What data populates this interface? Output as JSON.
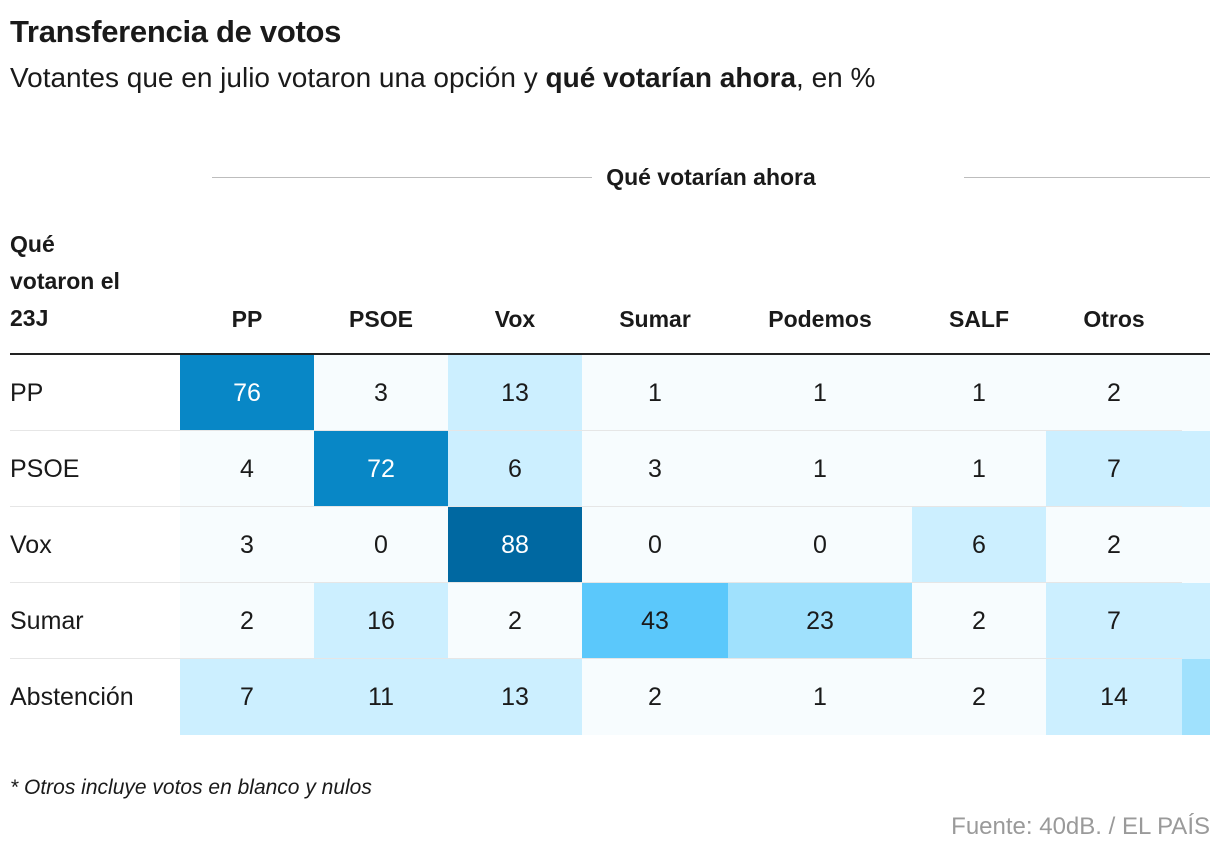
{
  "title": "Transferencia de votos",
  "subtitle": {
    "prefix": "Votantes que en julio votaron una opción y ",
    "bold": "qué votarían ahora",
    "suffix": ", en %"
  },
  "column_group_label": "Qué votarían ahora",
  "row_header": [
    "Qué",
    "votaron el",
    "23J"
  ],
  "note": "* Otros incluye votos en blanco y nulos",
  "source": "Fuente: 40dB. / EL PAÍS",
  "chart_data": {
    "type": "heatmap",
    "title": "Transferencia de votos",
    "xlabel": "Qué votarían ahora",
    "ylabel": "Qué votaron el 23J",
    "unit": "%",
    "columns": [
      "PP",
      "PSOE",
      "Vox",
      "Sumar",
      "Podemos",
      "SALF",
      "Otros"
    ],
    "rows": [
      "PP",
      "PSOE",
      "Vox",
      "Sumar",
      "Abstención"
    ],
    "values": [
      [
        76,
        3,
        13,
        1,
        1,
        1,
        2
      ],
      [
        4,
        72,
        6,
        3,
        1,
        1,
        7
      ],
      [
        3,
        0,
        88,
        0,
        0,
        6,
        2
      ],
      [
        2,
        16,
        2,
        43,
        23,
        2,
        7
      ],
      [
        7,
        11,
        13,
        2,
        1,
        2,
        14
      ]
    ],
    "clipped_column_levels": [
      2,
      7,
      2,
      7,
      32
    ],
    "color_scale": [
      "#f7fcfe",
      "#ccefff",
      "#a0e1fd",
      "#5bc8fb",
      "#0887c6",
      "#0068a1"
    ]
  }
}
